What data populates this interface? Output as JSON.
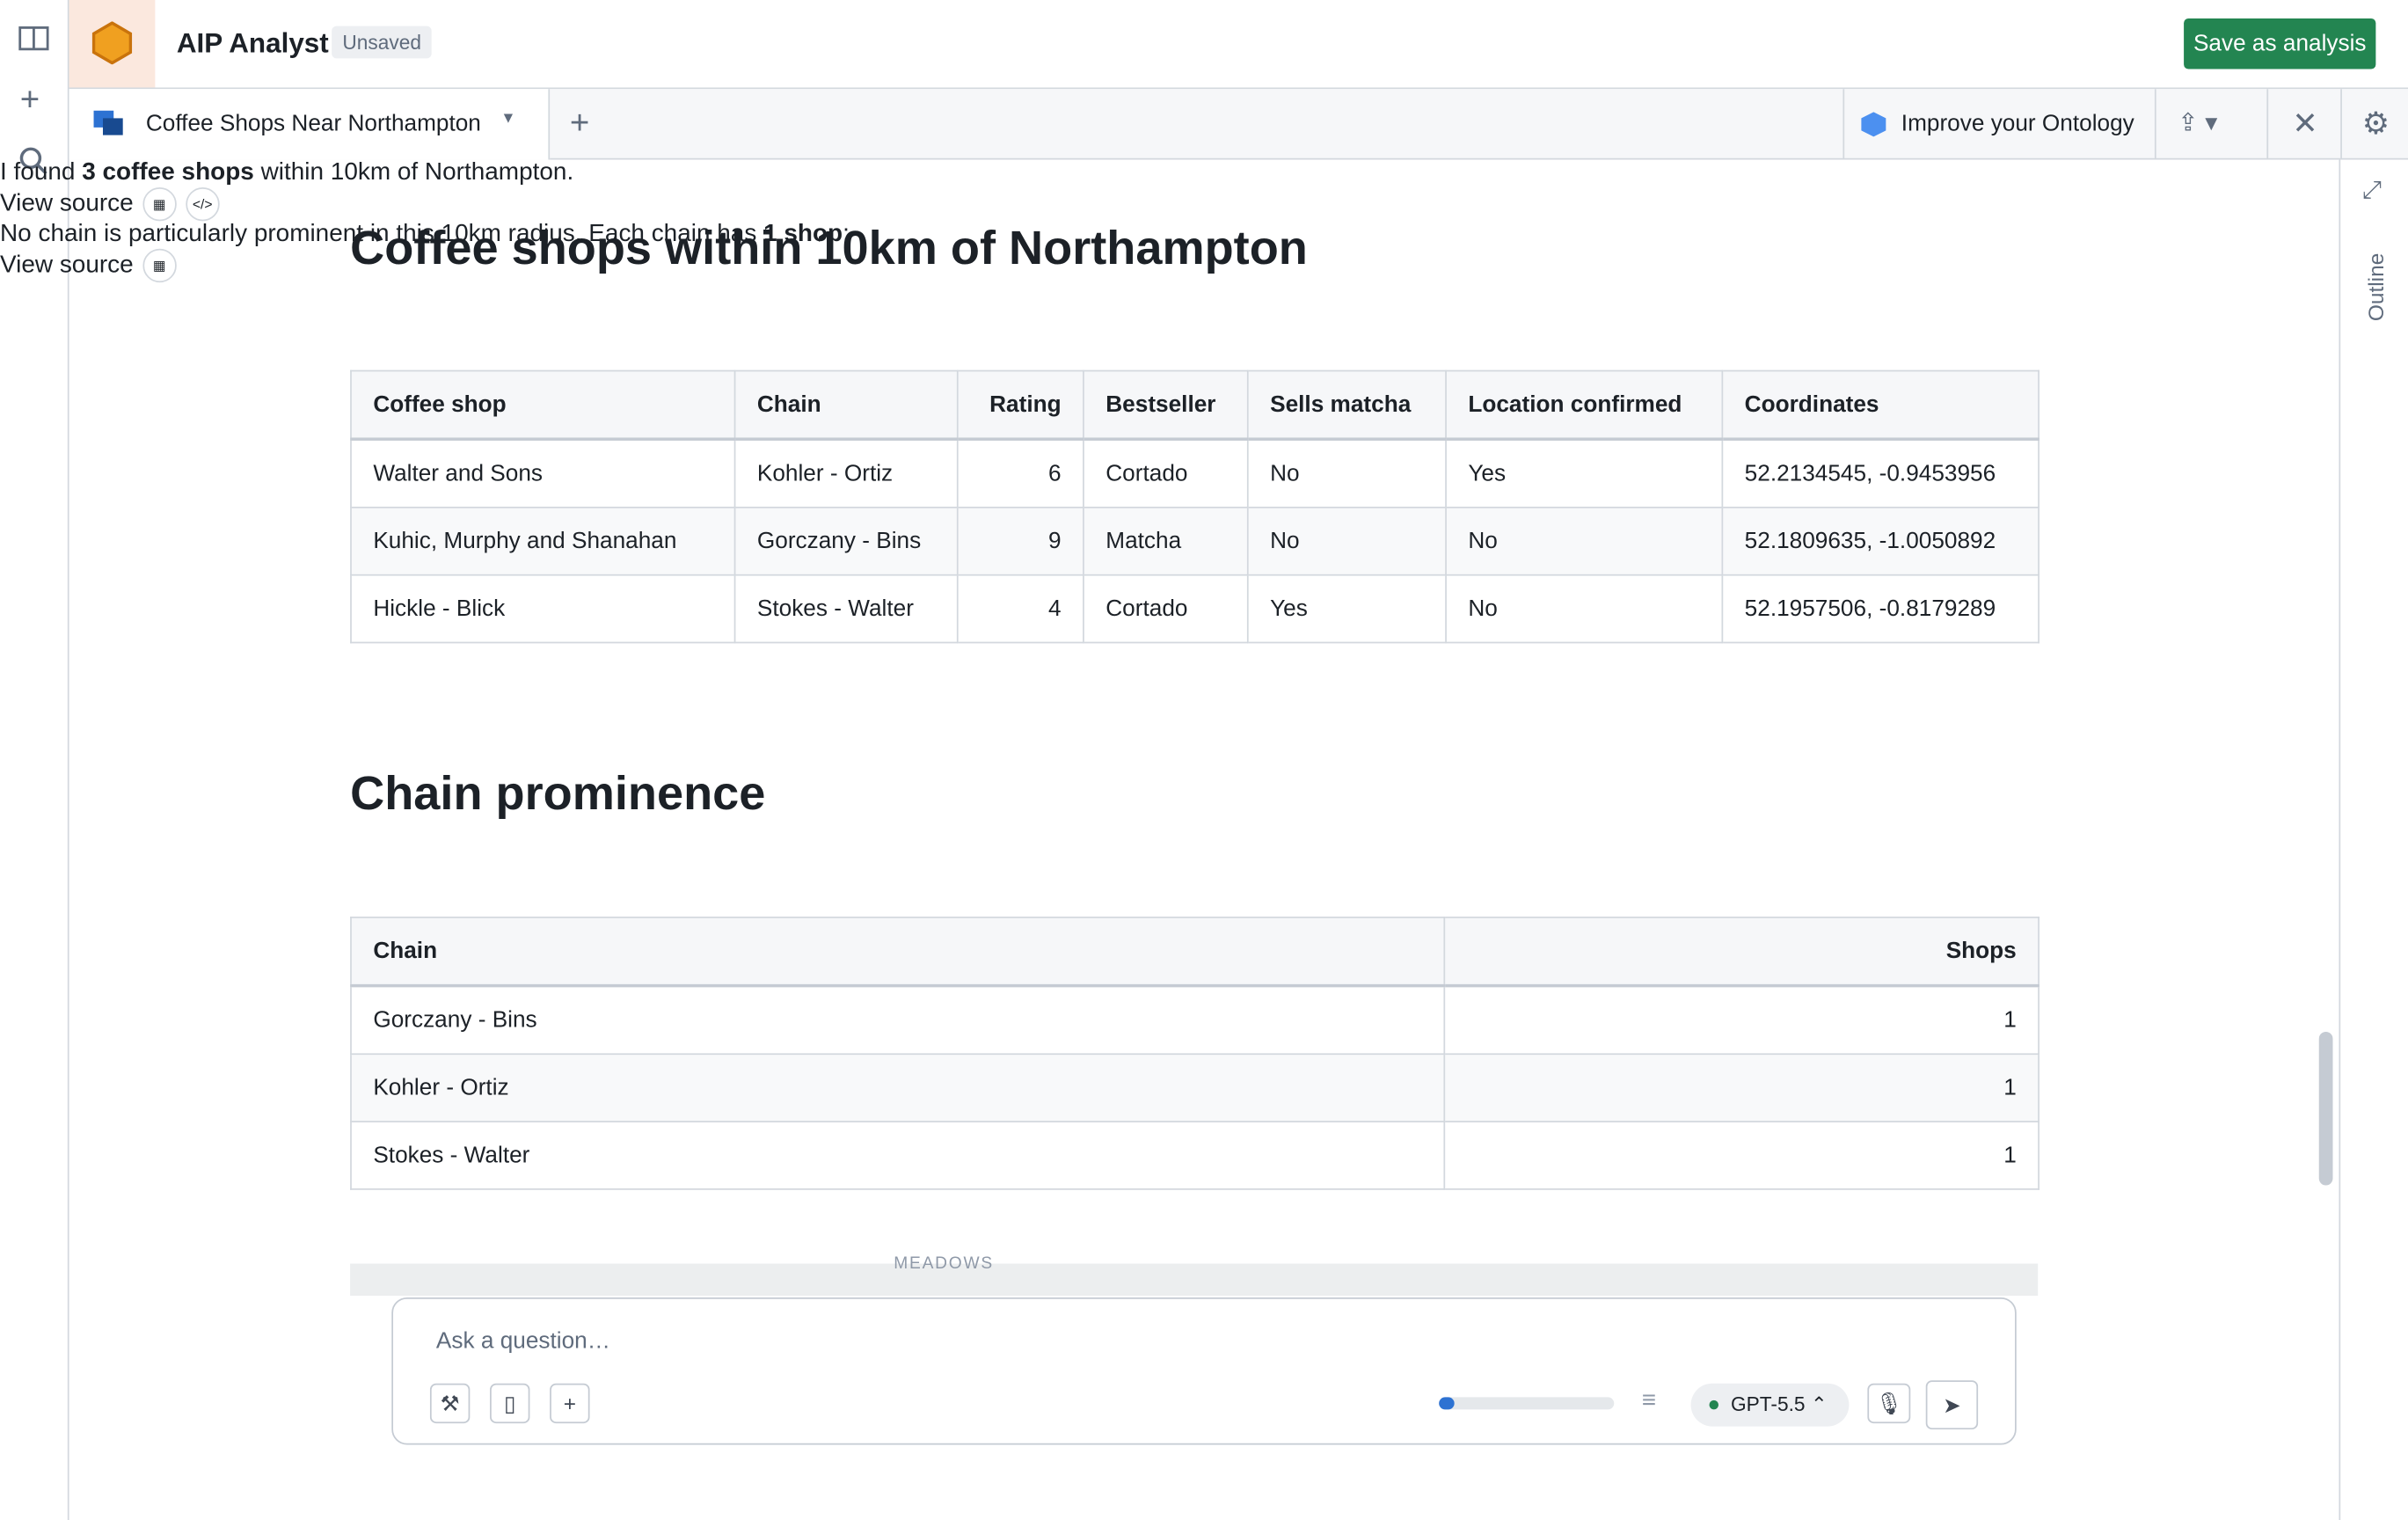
{
  "app": {
    "title": "AIP Analyst",
    "status": "Unsaved",
    "save_button": "Save as analysis"
  },
  "tab": {
    "title": "Coffee Shops Near Northampton",
    "improve": "Improve your Ontology",
    "outline": "Outline"
  },
  "sections": [
    {
      "heading": "Coffee shops within 10km of Northampton",
      "intro": [
        "I found ",
        "3 coffee shops",
        " within 10km of Northampton."
      ],
      "table": {
        "columns": [
          "Coffee shop",
          "Chain",
          "Rating",
          "Bestseller",
          "Sells matcha",
          "Location confirmed",
          "Coordinates"
        ],
        "rows": [
          [
            "Walter and Sons",
            "Kohler - Ortiz",
            6,
            "Cortado",
            "No",
            "Yes",
            "52.2134545, -0.9453956"
          ],
          [
            "Kuhic, Murphy and Shanahan",
            "Gorczany - Bins",
            9,
            "Matcha",
            "No",
            "No",
            "52.1809635, -1.0050892"
          ],
          [
            "Hickle - Blick",
            "Stokes - Walter",
            4,
            "Cortado",
            "Yes",
            "No",
            "52.1957506, -0.8179289"
          ]
        ]
      },
      "view_source": "View source"
    },
    {
      "heading": "Chain prominence",
      "intro": [
        "No chain is particularly prominent in this 10km radius. Each chain has ",
        "1 shop",
        ":"
      ],
      "table": {
        "columns": [
          "Chain",
          "Shops"
        ],
        "rows": [
          [
            "Gorczany - Bins",
            1
          ],
          [
            "Kohler - Ortiz",
            1
          ],
          [
            "Stokes - Walter",
            1
          ]
        ]
      },
      "view_source": "View source"
    }
  ],
  "map_label": "MEADOWS",
  "composer": {
    "placeholder": "Ask a question…",
    "model": "GPT-5.5"
  }
}
